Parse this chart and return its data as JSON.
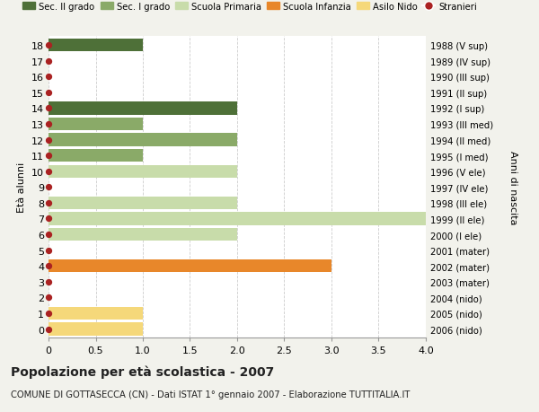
{
  "title": "Popolazione per età scolastica - 2007",
  "subtitle": "COMUNE DI GOTTASECCA (CN) - Dati ISTAT 1° gennaio 2007 - Elaborazione TUTTITALIA.IT",
  "ylabel": "Età alunni",
  "right_ylabel": "Anni di nascita",
  "xlim": [
    0,
    4.0
  ],
  "ylim": [
    -0.55,
    18.55
  ],
  "yticks": [
    0,
    1,
    2,
    3,
    4,
    5,
    6,
    7,
    8,
    9,
    10,
    11,
    12,
    13,
    14,
    15,
    16,
    17,
    18
  ],
  "right_labels": [
    "2006 (nido)",
    "2005 (nido)",
    "2004 (nido)",
    "2003 (mater)",
    "2002 (mater)",
    "2001 (mater)",
    "2000 (I ele)",
    "1999 (II ele)",
    "1998 (III ele)",
    "1997 (IV ele)",
    "1996 (V ele)",
    "1995 (I med)",
    "1994 (II med)",
    "1993 (III med)",
    "1992 (I sup)",
    "1991 (II sup)",
    "1990 (III sup)",
    "1989 (IV sup)",
    "1988 (V sup)"
  ],
  "bars": [
    {
      "y": 0,
      "value": 1.0,
      "color": "#f5d87a"
    },
    {
      "y": 1,
      "value": 1.0,
      "color": "#f5d87a"
    },
    {
      "y": 2,
      "value": 0,
      "color": "#f5d87a"
    },
    {
      "y": 3,
      "value": 0,
      "color": "#e8872a"
    },
    {
      "y": 4,
      "value": 3.0,
      "color": "#e8872a"
    },
    {
      "y": 5,
      "value": 0,
      "color": "#e8872a"
    },
    {
      "y": 6,
      "value": 2.0,
      "color": "#c8dcaa"
    },
    {
      "y": 7,
      "value": 4.0,
      "color": "#c8dcaa"
    },
    {
      "y": 8,
      "value": 2.0,
      "color": "#c8dcaa"
    },
    {
      "y": 9,
      "value": 0,
      "color": "#c8dcaa"
    },
    {
      "y": 10,
      "value": 2.0,
      "color": "#c8dcaa"
    },
    {
      "y": 11,
      "value": 1.0,
      "color": "#8aaa68"
    },
    {
      "y": 12,
      "value": 2.0,
      "color": "#8aaa68"
    },
    {
      "y": 13,
      "value": 1.0,
      "color": "#8aaa68"
    },
    {
      "y": 14,
      "value": 2.0,
      "color": "#4e7038"
    },
    {
      "y": 15,
      "value": 0,
      "color": "#4e7038"
    },
    {
      "y": 16,
      "value": 0,
      "color": "#4e7038"
    },
    {
      "y": 17,
      "value": 0,
      "color": "#4e7038"
    },
    {
      "y": 18,
      "value": 1.0,
      "color": "#4e7038"
    }
  ],
  "dot_color": "#aa2222",
  "dot_size": 18,
  "legend_items": [
    {
      "label": "Sec. II grado",
      "color": "#4e7038",
      "type": "patch"
    },
    {
      "label": "Sec. I grado",
      "color": "#8aaa68",
      "type": "patch"
    },
    {
      "label": "Scuola Primaria",
      "color": "#c8dcaa",
      "type": "patch"
    },
    {
      "label": "Scuola Infanzia",
      "color": "#e8872a",
      "type": "patch"
    },
    {
      "label": "Asilo Nido",
      "color": "#f5d87a",
      "type": "patch"
    },
    {
      "label": "Stranieri",
      "color": "#aa2222",
      "type": "circle"
    }
  ],
  "bg_color": "#f2f2ec",
  "plot_bg_color": "#ffffff",
  "grid_color": "#cccccc",
  "bar_height": 0.82,
  "xticks": [
    0,
    0.5,
    1.0,
    1.5,
    2.0,
    2.5,
    3.0,
    3.5,
    4.0
  ],
  "xtick_labels": [
    "0",
    "0.5",
    "1.0",
    "1.5",
    "2.0",
    "2.5",
    "3.0",
    "3.5",
    "4.0"
  ]
}
